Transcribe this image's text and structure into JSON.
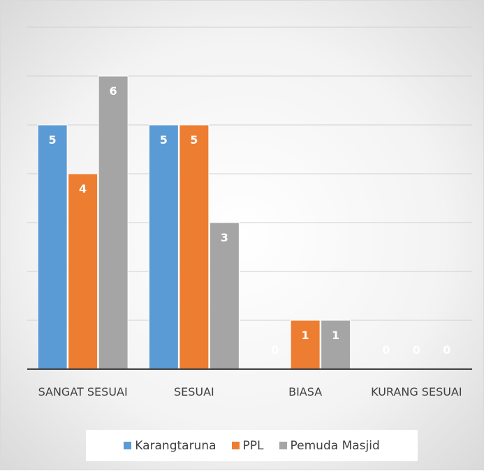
{
  "chart_data": {
    "type": "bar",
    "categories": [
      "SANGAT SESUAI",
      "SESUAI",
      "BIASA",
      "KURANG SESUAI"
    ],
    "series": [
      {
        "name": "Karangtaruna",
        "color": "#5b9bd5",
        "values": [
          5,
          5,
          0,
          0
        ]
      },
      {
        "name": "PPL",
        "color": "#ed7d31",
        "values": [
          4,
          5,
          1,
          0
        ]
      },
      {
        "name": "Pemuda Masjid",
        "color": "#a5a5a5",
        "values": [
          6,
          3,
          1,
          0
        ]
      }
    ],
    "ylim": [
      0,
      7
    ],
    "yticks": [
      0,
      1,
      2,
      3,
      4,
      5,
      6,
      7
    ],
    "grid": true,
    "legend": "bottom"
  }
}
